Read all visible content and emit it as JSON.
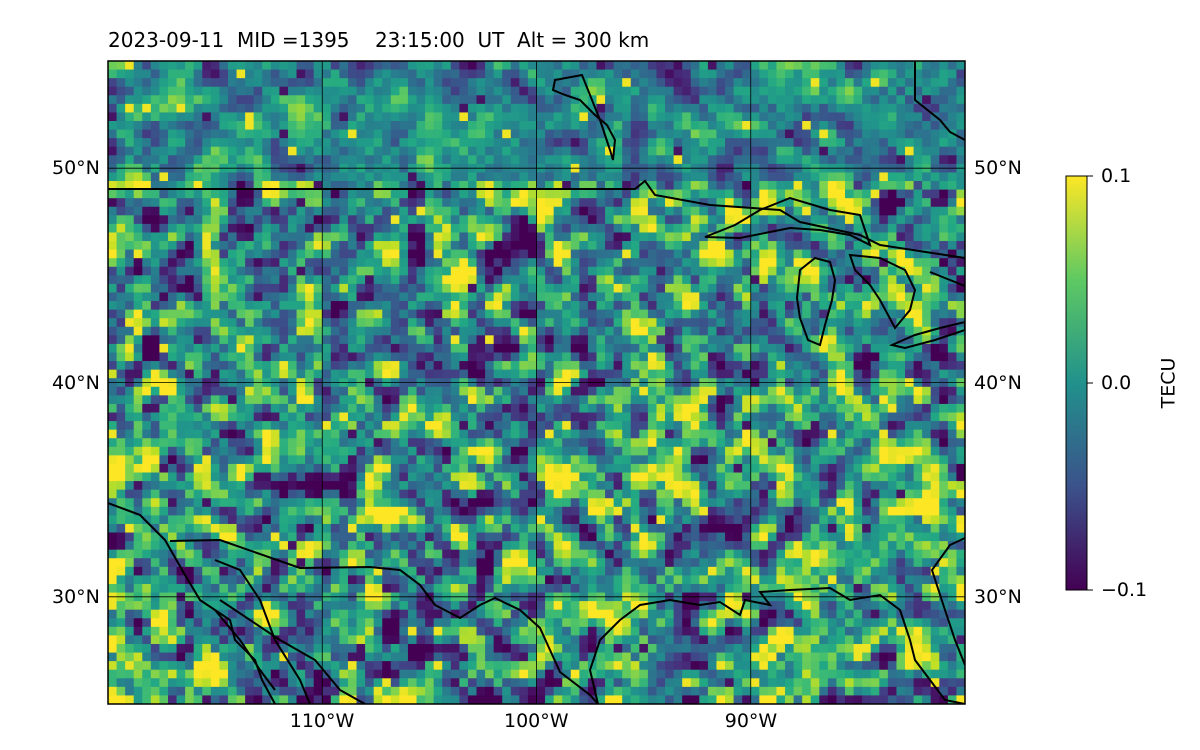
{
  "title": "2023-09-11  MID =1395    23:15:00  UT  Alt = 300 km",
  "map": {
    "lon_range": [
      -120,
      -80
    ],
    "lat_range": [
      25,
      55
    ],
    "lon_ticks": [
      {
        "value": -110,
        "label": "110°W"
      },
      {
        "value": -100,
        "label": "100°W"
      },
      {
        "value": -90,
        "label": "90°W"
      }
    ],
    "lat_ticks": [
      {
        "value": 30,
        "label": "30°N"
      },
      {
        "value": 40,
        "label": "40°N"
      },
      {
        "value": 50,
        "label": "50°N"
      }
    ],
    "grid": true,
    "field": "detrended TEC perturbation",
    "cells_lon": 100,
    "cells_lat": 75
  },
  "colorbar": {
    "label": "TECU",
    "min": -0.1,
    "max": 0.1,
    "ticks": [
      {
        "value": 0.1,
        "label": "0.1"
      },
      {
        "value": 0.0,
        "label": "0.0"
      },
      {
        "value": -0.1,
        "label": "−0.1"
      }
    ],
    "colormap": "viridis",
    "colors": [
      "#440154",
      "#3b528b",
      "#21918c",
      "#5ec962",
      "#fde725"
    ]
  }
}
